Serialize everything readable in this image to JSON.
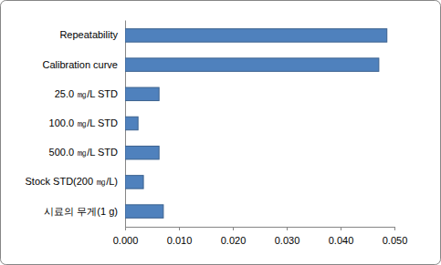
{
  "chart_data": {
    "type": "bar",
    "orientation": "horizontal",
    "categories": [
      "Repeatability",
      "Calibration curve",
      "25.0 ㎎/L STD",
      "100.0 ㎎/L STD",
      "500.0 ㎎/L STD",
      "Stock STD(200 ㎎/L)",
      "시료의 무게(1 g)"
    ],
    "values": [
      0.0486,
      0.0471,
      0.0063,
      0.0024,
      0.0063,
      0.0034,
      0.0071
    ],
    "color": "#4f81bd",
    "xlim": [
      0,
      0.05
    ],
    "xticks": [
      {
        "value": 0,
        "label": "0.000"
      },
      {
        "value": 0.01,
        "label": "0.010"
      },
      {
        "value": 0.02,
        "label": "0.020"
      },
      {
        "value": 0.03,
        "label": "0.030"
      },
      {
        "value": 0.04,
        "label": "0.040"
      },
      {
        "value": 0.05,
        "label": "0.050"
      }
    ],
    "grid": false
  }
}
